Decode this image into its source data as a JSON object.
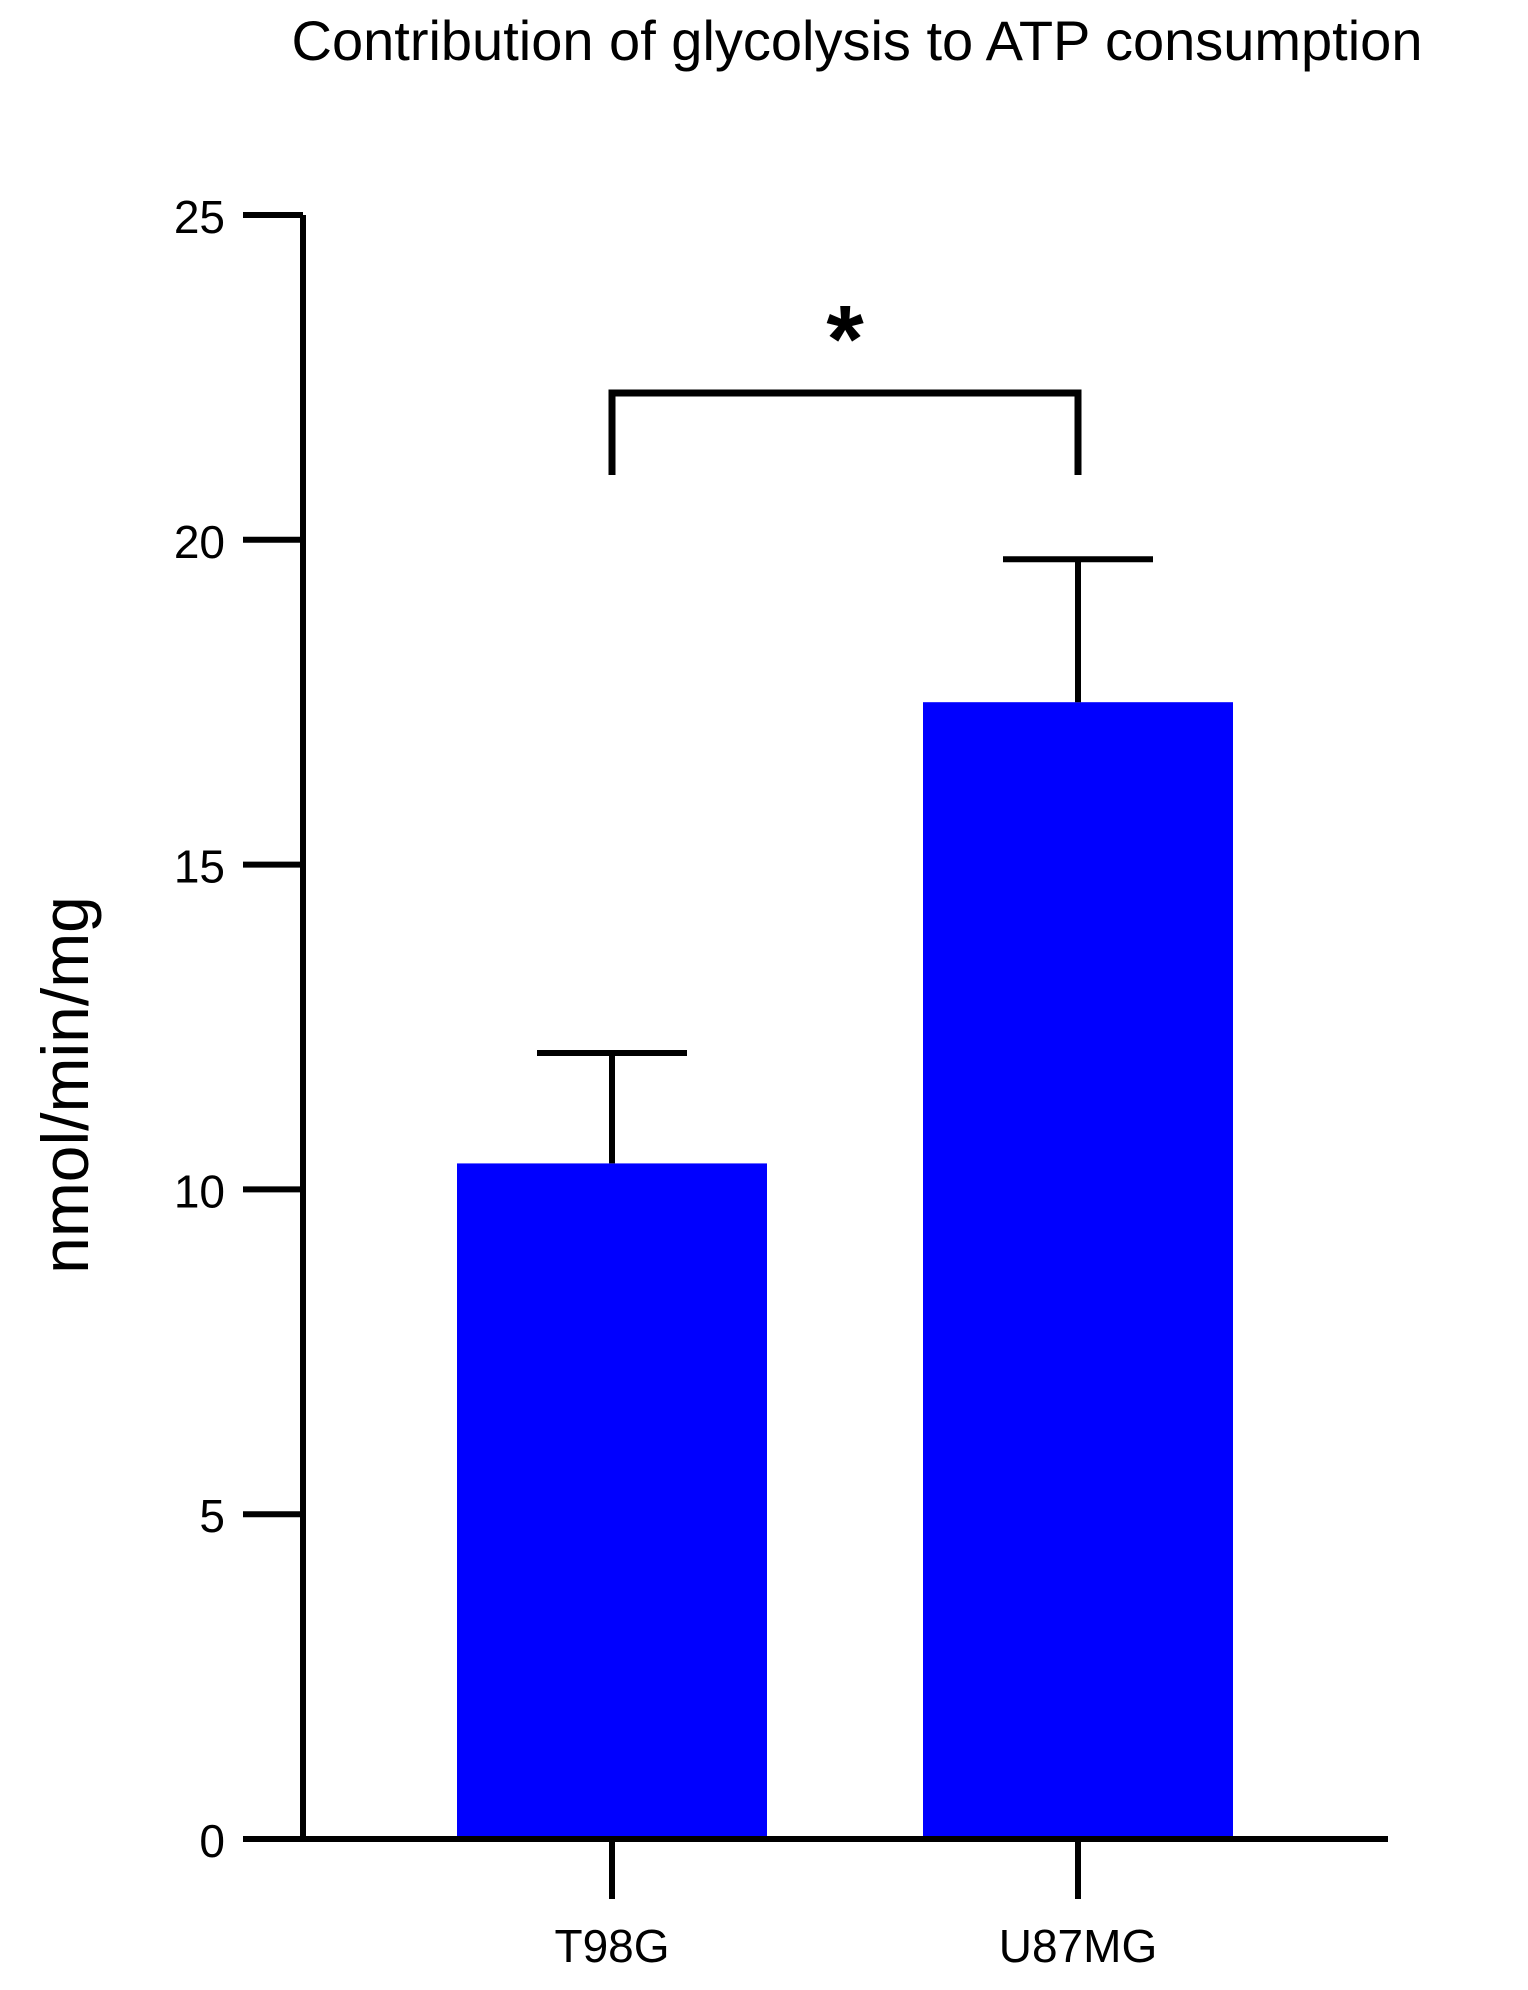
{
  "chart_data": {
    "type": "bar",
    "title": "Contribution of glycolysis to ATP consumption",
    "xlabel": "",
    "ylabel": "nmol/min/mg",
    "categories": [
      "T98G",
      "U87MG"
    ],
    "values": [
      10.4,
      17.5
    ],
    "errors": [
      1.7,
      2.2
    ],
    "ylim": [
      0,
      25
    ],
    "yticks": [
      0,
      5,
      10,
      15,
      20,
      25
    ],
    "ytick_labels": [
      "0",
      "5",
      "10",
      "15",
      "20",
      "25"
    ],
    "grid": false,
    "legend": "none",
    "bar_color": "#0000ff",
    "significance": {
      "between": [
        "T98G",
        "U87MG"
      ],
      "label": "*"
    }
  }
}
